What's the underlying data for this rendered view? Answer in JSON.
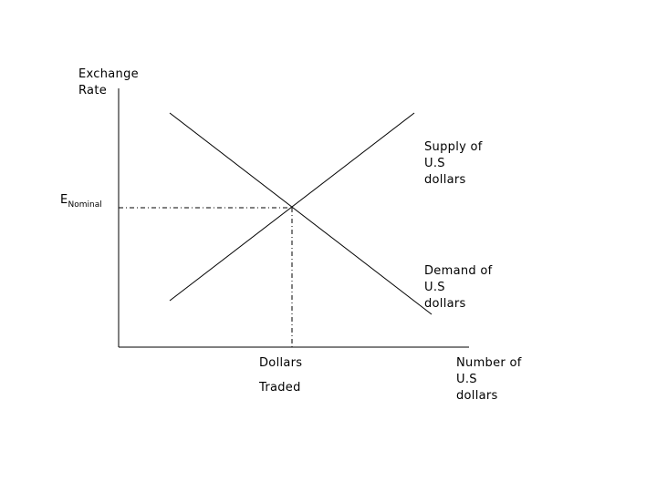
{
  "axes": {
    "y_label_line1": "Exchange",
    "y_label_line2": "Rate",
    "x_label_line1": "Number of",
    "x_label_line2": "U.S",
    "x_label_line3": "dollars"
  },
  "equilibrium": {
    "price_label_main": "E",
    "price_label_sub": "Nominal",
    "quantity_label_line1": "Dollars",
    "quantity_label_line2": "Traded"
  },
  "curves": {
    "supply_line1": "Supply of",
    "supply_line2": "U.S",
    "supply_line3": "dollars",
    "demand_line1": "Demand of",
    "demand_line2": "U.S",
    "demand_line3": "dollars"
  },
  "colors": {
    "line": "#000000",
    "background": "#ffffff"
  }
}
